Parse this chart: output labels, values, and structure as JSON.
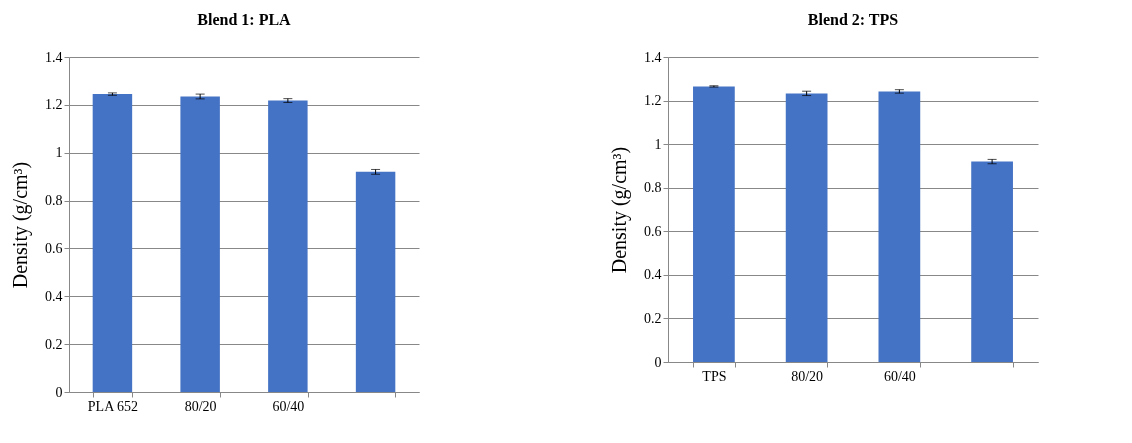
{
  "chart_data": [
    {
      "type": "bar",
      "title": "Blend 1: PLA",
      "ylabel": "Density (g/cm³)",
      "categories": [
        "PLA 652",
        "80/20",
        "60/40",
        null
      ],
      "values": [
        1.245,
        1.235,
        1.218,
        0.92
      ],
      "errors": [
        0.005,
        0.01,
        0.008,
        0.01
      ],
      "color": "#4472c4",
      "ylim": [
        0,
        1.4
      ],
      "yticks": [
        0,
        0.2,
        0.4,
        0.6,
        0.8,
        1,
        1.2,
        1.4
      ],
      "grid": "y"
    },
    {
      "type": "bar",
      "title": "Blend 2: TPS",
      "ylabel": "Density (g/cm³)",
      "categories": [
        "TPS",
        "80/20",
        "60/40",
        null
      ],
      "values": [
        1.265,
        1.233,
        1.242,
        0.92
      ],
      "errors": [
        0.003,
        0.01,
        0.008,
        0.01
      ],
      "color": "#4472c4",
      "ylim": [
        0,
        1.4
      ],
      "yticks": [
        0,
        0.2,
        0.4,
        0.6,
        0.8,
        1,
        1.2,
        1.4
      ],
      "grid": "y"
    }
  ]
}
